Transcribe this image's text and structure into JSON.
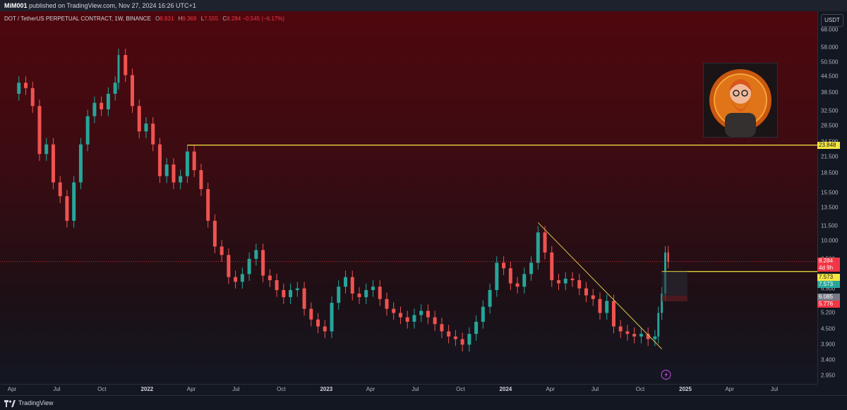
{
  "header": {
    "publisher": "MiM001",
    "published_text": "published on TradingView.com, Nov 27, 2024 16:26 UTC+1"
  },
  "legend": {
    "symbol": "DOT / TetherUS PERPETUAL CONTRACT, 1W, BINANCE",
    "o_label": "O",
    "o_value": "8.831",
    "h_label": "H",
    "h_value": "9.369",
    "l_label": "L",
    "l_value": "7.555",
    "c_label": "C",
    "c_value": "8.284",
    "change": "−0.545 (−6.17%)"
  },
  "currency_button": "USDT",
  "footer": {
    "brand": "TradingView"
  },
  "colors": {
    "up": "#26a69a",
    "down": "#ef5350",
    "level_line": "#f5e642",
    "price_tag": "#f23645",
    "bg_top": "#4e070d"
  },
  "icons": [
    "tradingview-logo-icon",
    "lightning-icon"
  ],
  "chart_data": {
    "type": "candlestick",
    "scale": "log",
    "y_ticks": [
      "68.000",
      "58.000",
      "50.500",
      "44.500",
      "38.500",
      "32.500",
      "28.500",
      "24.500",
      "21.500",
      "18.500",
      "15.500",
      "13.500",
      "11.500",
      "10.000",
      "8.500",
      "6.500",
      "5.200",
      "4.500",
      "3.900",
      "3.400",
      "2.950"
    ],
    "y_tick_values": [
      68,
      58,
      50.5,
      44.5,
      38.5,
      32.5,
      28.5,
      24.5,
      21.5,
      18.5,
      15.5,
      13.5,
      11.5,
      10,
      8.5,
      6.5,
      5.2,
      4.5,
      3.9,
      3.4,
      2.95
    ],
    "x_ticks": [
      "Apr",
      "Jul",
      "Oct",
      "2022",
      "Apr",
      "Jul",
      "Oct",
      "2023",
      "Apr",
      "Jul",
      "Oct",
      "2024",
      "Apr",
      "Jul",
      "Oct",
      "2025",
      "Apr",
      "Jul"
    ],
    "x_tick_dates": [
      "2021-04-01",
      "2021-07-01",
      "2021-10-01",
      "2022-01-01",
      "2022-04-01",
      "2022-07-01",
      "2022-10-01",
      "2023-01-01",
      "2023-04-01",
      "2023-07-01",
      "2023-10-01",
      "2024-01-01",
      "2024-04-01",
      "2024-07-01",
      "2024-10-01",
      "2025-01-01",
      "2025-04-01",
      "2025-07-01"
    ],
    "year_labels": [
      "2022",
      "2023",
      "2024",
      "2025"
    ],
    "closes": [
      [
        "2021-04-01",
        38
      ],
      [
        "2021-04-15",
        42
      ],
      [
        "2021-04-29",
        40
      ],
      [
        "2021-05-13",
        34
      ],
      [
        "2021-05-27",
        22
      ],
      [
        "2021-06-10",
        24
      ],
      [
        "2021-06-24",
        17
      ],
      [
        "2021-07-08",
        15
      ],
      [
        "2021-07-22",
        12
      ],
      [
        "2021-08-05",
        17
      ],
      [
        "2021-08-19",
        24
      ],
      [
        "2021-09-02",
        31
      ],
      [
        "2021-09-16",
        35
      ],
      [
        "2021-09-30",
        33
      ],
      [
        "2021-10-14",
        38
      ],
      [
        "2021-10-28",
        42
      ],
      [
        "2021-11-04",
        54
      ],
      [
        "2021-11-18",
        45
      ],
      [
        "2021-12-02",
        34
      ],
      [
        "2021-12-16",
        27
      ],
      [
        "2021-12-30",
        29
      ],
      [
        "2022-01-13",
        24
      ],
      [
        "2022-01-27",
        18
      ],
      [
        "2022-02-10",
        20
      ],
      [
        "2022-02-24",
        17
      ],
      [
        "2022-03-10",
        18
      ],
      [
        "2022-03-24",
        22.5
      ],
      [
        "2022-04-07",
        19
      ],
      [
        "2022-04-21",
        16
      ],
      [
        "2022-05-05",
        12
      ],
      [
        "2022-05-19",
        9.5
      ],
      [
        "2022-06-02",
        8.8
      ],
      [
        "2022-06-16",
        7.2
      ],
      [
        "2022-06-30",
        6.9
      ],
      [
        "2022-07-14",
        7.4
      ],
      [
        "2022-07-28",
        8.5
      ],
      [
        "2022-08-11",
        9.2
      ],
      [
        "2022-08-25",
        7.3
      ],
      [
        "2022-09-08",
        7.0
      ],
      [
        "2022-09-22",
        6.4
      ],
      [
        "2022-10-06",
        6.0
      ],
      [
        "2022-10-20",
        6.4
      ],
      [
        "2022-11-03",
        6.5
      ],
      [
        "2022-11-17",
        5.4
      ],
      [
        "2022-12-01",
        4.9
      ],
      [
        "2022-12-15",
        4.6
      ],
      [
        "2022-12-29",
        4.4
      ],
      [
        "2023-01-12",
        5.7
      ],
      [
        "2023-01-26",
        6.6
      ],
      [
        "2023-02-09",
        7.2
      ],
      [
        "2023-02-23",
        6.2
      ],
      [
        "2023-03-09",
        6.0
      ],
      [
        "2023-03-23",
        6.4
      ],
      [
        "2023-04-06",
        6.6
      ],
      [
        "2023-04-20",
        5.9
      ],
      [
        "2023-05-04",
        5.4
      ],
      [
        "2023-05-18",
        5.2
      ],
      [
        "2023-06-01",
        5.0
      ],
      [
        "2023-06-15",
        4.8
      ],
      [
        "2023-06-29",
        5.1
      ],
      [
        "2023-07-13",
        5.3
      ],
      [
        "2023-07-27",
        5.0
      ],
      [
        "2023-08-10",
        4.7
      ],
      [
        "2023-08-24",
        4.4
      ],
      [
        "2023-09-07",
        4.2
      ],
      [
        "2023-09-21",
        4.1
      ],
      [
        "2023-10-05",
        3.9
      ],
      [
        "2023-10-19",
        4.3
      ],
      [
        "2023-11-02",
        4.8
      ],
      [
        "2023-11-16",
        5.5
      ],
      [
        "2023-11-30",
        6.4
      ],
      [
        "2023-12-14",
        8.2
      ],
      [
        "2023-12-28",
        7.8
      ],
      [
        "2024-01-11",
        6.8
      ],
      [
        "2024-01-25",
        6.6
      ],
      [
        "2024-02-08",
        7.4
      ],
      [
        "2024-02-22",
        8.2
      ],
      [
        "2024-03-07",
        10.8
      ],
      [
        "2024-03-21",
        9.0
      ],
      [
        "2024-04-04",
        7.0
      ],
      [
        "2024-04-18",
        6.8
      ],
      [
        "2024-05-02",
        7.1
      ],
      [
        "2024-05-16",
        7.0
      ],
      [
        "2024-05-30",
        6.5
      ],
      [
        "2024-06-13",
        6.1
      ],
      [
        "2024-06-27",
        5.9
      ],
      [
        "2024-07-11",
        5.2
      ],
      [
        "2024-07-25",
        5.8
      ],
      [
        "2024-08-08",
        4.6
      ],
      [
        "2024-08-22",
        4.4
      ],
      [
        "2024-09-05",
        4.3
      ],
      [
        "2024-09-19",
        4.2
      ],
      [
        "2024-10-03",
        4.3
      ],
      [
        "2024-10-17",
        4.1
      ],
      [
        "2024-10-31",
        4.2
      ],
      [
        "2024-11-07",
        5.2
      ],
      [
        "2024-11-14",
        6.2
      ],
      [
        "2024-11-21",
        9.0
      ],
      [
        "2024-11-27",
        8.284
      ]
    ],
    "horizontal_levels": [
      {
        "price": 23.848,
        "label": "23.848",
        "from_date": "2022-03-24"
      },
      {
        "price": 7.573,
        "label": "7.573",
        "from_date": "2024-11-14"
      }
    ],
    "trendline": {
      "from": [
        "2024-03-07",
        11.8
      ],
      "to": [
        "2024-11-14",
        3.75
      ]
    },
    "price_labels": [
      {
        "value": "8.284",
        "sub": "4d 9h",
        "color": "#f23645"
      },
      {
        "value": "7.573",
        "color": "#f5e642"
      },
      {
        "value": "7.573",
        "color": "#26a69a"
      },
      {
        "value": "6.085",
        "color": "#787b86"
      },
      {
        "value": "5.776",
        "color": "#f23645"
      }
    ]
  }
}
